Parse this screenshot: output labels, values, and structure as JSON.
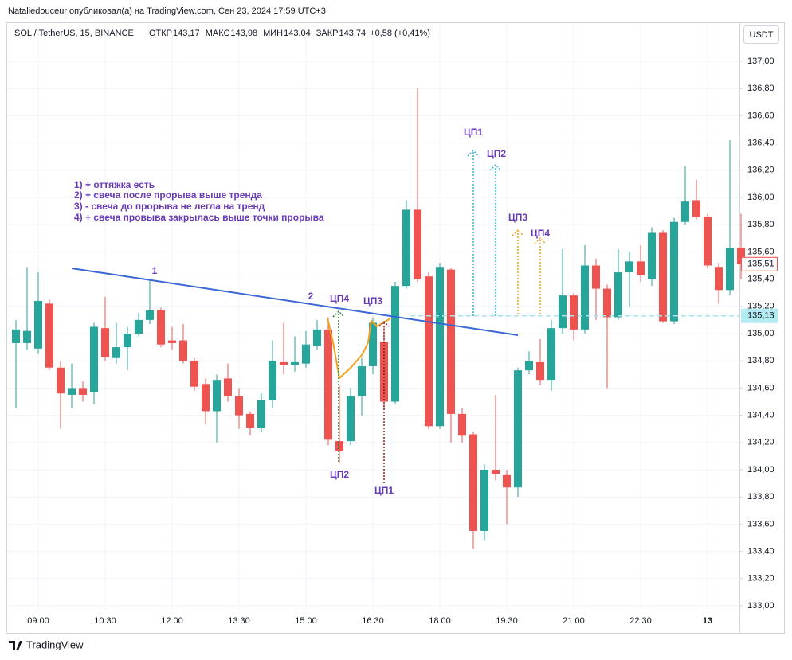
{
  "header": {
    "publisher": "Nataliedouceur опубликовал(а) на TradingView.com, Сен 23, 2024 17:59 UTC+3"
  },
  "chart_data": {
    "type": "candlestick",
    "title": "SOL / TetherUS, 15, BINANCE",
    "ohlc_legend": [
      {
        "label": "ОТКР",
        "value": "143,17"
      },
      {
        "label": "МАКС",
        "value": "143,98"
      },
      {
        "label": "МИН",
        "value": "143,04"
      },
      {
        "label": "ЗАКР",
        "value": "143,74"
      }
    ],
    "change": "+0,58 (+0,41%)",
    "currency": "USDT",
    "categories": [
      null,
      null,
      "09:00",
      null,
      null,
      null,
      null,
      null,
      "10:30",
      null,
      null,
      null,
      null,
      null,
      "12:00",
      null,
      null,
      null,
      null,
      null,
      "13:30",
      null,
      null,
      null,
      null,
      null,
      "15:00",
      null,
      null,
      null,
      null,
      null,
      "16:30",
      null,
      null,
      null,
      null,
      null,
      "18:00",
      null,
      null,
      null,
      null,
      null,
      "19:30",
      null,
      null,
      null,
      null,
      null,
      "21:00",
      null,
      null,
      null,
      null,
      null,
      "22:30",
      null,
      null,
      null,
      null,
      null,
      "13",
      null,
      null,
      null
    ],
    "open": [
      134.93,
      134.93,
      134.89,
      135.22,
      134.75,
      134.55,
      134.6,
      134.57,
      135.04,
      134.82,
      134.9,
      135.0,
      135.1,
      135.17,
      134.95,
      134.95,
      134.8,
      134.63,
      134.43,
      134.67,
      134.54,
      134.41,
      134.31,
      134.51,
      134.79,
      134.77,
      134.78,
      134.91,
      135.03,
      134.21,
      134.21,
      134.54,
      134.76,
      134.94,
      134.5,
      135.35,
      135.91,
      135.42,
      134.32,
      135.47,
      134.41,
      134.26,
      133.55,
      134.0,
      133.96,
      133.87,
      134.73,
      134.79,
      134.66,
      135.04,
      135.28,
      135.03,
      135.5,
      135.33,
      135.12,
      135.45,
      135.53,
      135.4,
      135.74,
      135.09,
      135.82,
      135.98,
      135.86,
      135.49,
      135.32,
      135.63
    ],
    "high": [
      135.1,
      135.49,
      135.45,
      135.25,
      134.8,
      134.78,
      134.65,
      135.08,
      135.27,
      135.08,
      135.05,
      135.15,
      135.4,
      135.19,
      135.05,
      135.07,
      134.82,
      134.67,
      134.7,
      134.78,
      134.6,
      134.43,
      134.56,
      134.95,
      135.08,
      134.98,
      135.02,
      135.1,
      135.12,
      134.62,
      134.6,
      134.82,
      135.12,
      135.06,
      135.38,
      135.98,
      136.8,
      135.45,
      135.52,
      135.48,
      134.45,
      134.28,
      134.04,
      134.55,
      134.0,
      134.75,
      134.87,
      134.96,
      135.1,
      135.62,
      135.3,
      135.65,
      135.55,
      135.36,
      135.62,
      135.6,
      135.65,
      135.78,
      135.76,
      135.85,
      136.23,
      136.13,
      135.88,
      135.52,
      136.42,
      135.88
    ],
    "low": [
      134.45,
      134.88,
      134.85,
      134.73,
      134.3,
      134.45,
      134.5,
      134.48,
      134.8,
      134.78,
      134.73,
      134.98,
      135.07,
      134.9,
      134.88,
      134.78,
      134.58,
      134.33,
      134.2,
      134.5,
      134.3,
      134.25,
      134.28,
      134.45,
      134.7,
      134.72,
      134.75,
      134.88,
      134.18,
      134.05,
      134.18,
      134.4,
      134.7,
      134.45,
      134.48,
      135.33,
      135.38,
      134.3,
      134.3,
      134.2,
      134.2,
      133.42,
      133.48,
      133.92,
      133.6,
      133.8,
      134.7,
      134.62,
      134.58,
      135.0,
      134.95,
      135.0,
      135.1,
      134.6,
      135.1,
      135.2,
      135.38,
      135.35,
      135.08,
      135.07,
      135.8,
      135.84,
      135.48,
      135.22,
      135.28,
      135.4
    ],
    "close": [
      135.03,
      135.02,
      135.24,
      134.75,
      134.56,
      134.6,
      134.55,
      135.05,
      134.83,
      134.9,
      135.0,
      135.1,
      135.17,
      134.92,
      134.93,
      134.8,
      134.61,
      134.43,
      134.66,
      134.54,
      134.4,
      134.31,
      134.51,
      134.8,
      134.77,
      134.79,
      134.92,
      135.03,
      134.22,
      134.14,
      134.54,
      134.76,
      135.08,
      134.5,
      135.35,
      135.91,
      135.4,
      134.32,
      135.49,
      134.41,
      134.25,
      133.55,
      134.0,
      133.97,
      133.87,
      134.73,
      134.8,
      134.66,
      135.04,
      135.28,
      135.03,
      135.5,
      135.33,
      135.12,
      135.45,
      135.53,
      135.43,
      135.74,
      135.09,
      135.82,
      135.97,
      135.86,
      135.5,
      135.32,
      135.63,
      135.51
    ],
    "up_color": "#26a69a",
    "down_color": "#ef5350",
    "ylim": [
      133,
      137
    ],
    "yticks": [
      {
        "value": 133,
        "label": "133,00"
      },
      {
        "value": 133.2,
        "label": "133,20"
      },
      {
        "value": 133.4,
        "label": "133,40"
      },
      {
        "value": 133.6,
        "label": "133,60"
      },
      {
        "value": 133.8,
        "label": "133,80"
      },
      {
        "value": 134,
        "label": "134,00"
      },
      {
        "value": 134.2,
        "label": "134,20"
      },
      {
        "value": 134.4,
        "label": "134,40"
      },
      {
        "value": 134.6,
        "label": "134,60"
      },
      {
        "value": 134.8,
        "label": "134,80"
      },
      {
        "value": 135,
        "label": "135,00"
      },
      {
        "value": 135.2,
        "label": "135,20"
      },
      {
        "value": 135.4,
        "label": "135,40"
      },
      {
        "value": 135.6,
        "label": "135,60"
      },
      {
        "value": 135.8,
        "label": "135,80"
      },
      {
        "value": 136,
        "label": "136,00"
      },
      {
        "value": 136.2,
        "label": "136,20"
      },
      {
        "value": 136.4,
        "label": "136,40"
      },
      {
        "value": 136.6,
        "label": "136,60"
      },
      {
        "value": 136.8,
        "label": "136,80"
      },
      {
        "value": 137,
        "label": "137,00"
      }
    ],
    "grid": true,
    "last_price": {
      "value": 135.51,
      "label": "135,51"
    },
    "price_line": {
      "value": 135.13,
      "label": "135,13"
    },
    "notes": [
      "1) + оттяжка есть",
      "2) + свеча после прорыва выше тренда",
      "3) - свеча до прорыва не легла на тренд",
      "4) + свеча провыва закрылась выше точки прорыва"
    ],
    "annotations": [
      "1",
      "2",
      "ЦП4",
      "ЦП3",
      "ЦП2",
      "ЦП1",
      "ЦП1",
      "ЦП2",
      "ЦП3",
      "ЦП4"
    ]
  },
  "footer": {
    "brand": "TradingView"
  }
}
